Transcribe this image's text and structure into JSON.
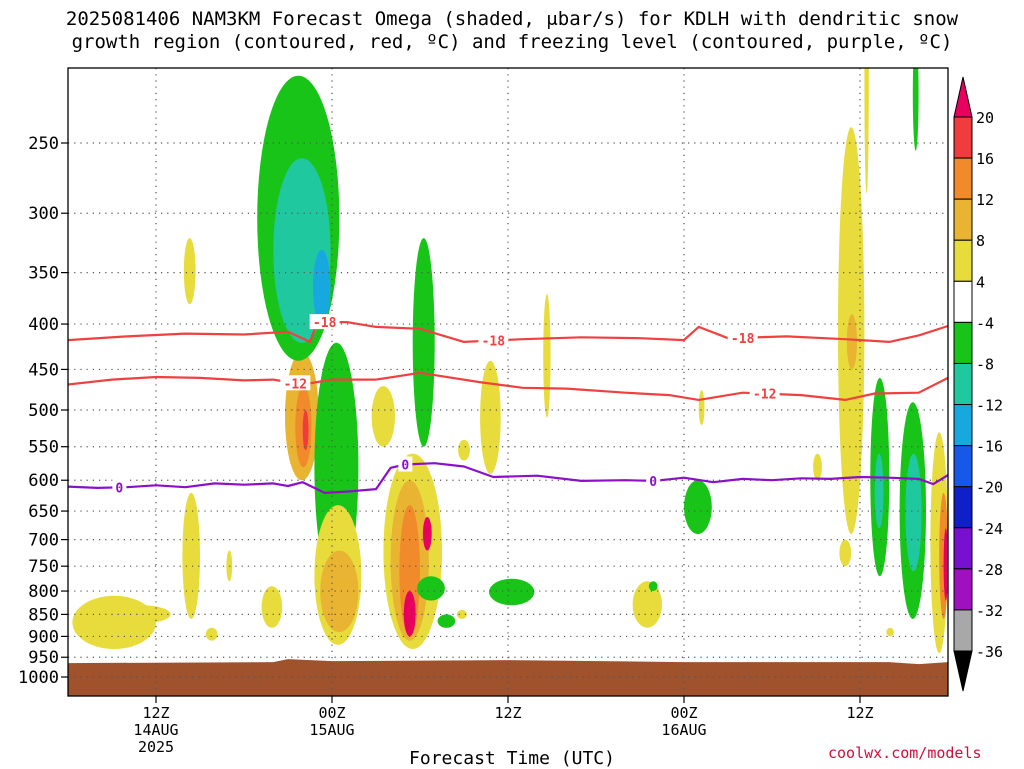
{
  "title_line1": "2025081406 NAM3KM Forecast Omega (shaded, μbar/s) for KDLH with dendritic snow",
  "title_line2": "growth region (contoured, red, ºC) and freezing level (contoured, purple, ºC)",
  "credit": "coolwx.com/models",
  "chart_data": {
    "type": "heatmap",
    "title": "2025081406 NAM3KM Forecast Omega (shaded, μbar/s) for KDLH with dendritic snow growth region (contoured, red, ºC) and freezing level (contoured, purple, ºC)",
    "xlabel": "Forecast Time (UTC)",
    "ylabel": "",
    "y_axis_type": "log-pressure",
    "y_axis_inverted": true,
    "y_ticks": [
      250,
      300,
      350,
      400,
      450,
      500,
      550,
      600,
      650,
      700,
      750,
      800,
      850,
      900,
      950,
      1000
    ],
    "ylim": [
      200,
      1010
    ],
    "x_range_hours": [
      6,
      66
    ],
    "x_ticks": [
      {
        "hour": 12,
        "label": [
          "12Z",
          "14AUG",
          "2025"
        ]
      },
      {
        "hour": 24,
        "label": [
          "00Z",
          "15AUG"
        ]
      },
      {
        "hour": 36,
        "label": [
          "12Z"
        ]
      },
      {
        "hour": 48,
        "label": [
          "00Z",
          "16AUG"
        ]
      },
      {
        "hour": 60,
        "label": [
          "12Z"
        ]
      }
    ],
    "grid": true,
    "colorbar": {
      "labels": [
        "20",
        "16",
        "12",
        "8",
        "4",
        "-4",
        "-8",
        "-12",
        "-16",
        "-20",
        "-24",
        "-28",
        "-32",
        "-36"
      ],
      "levels": [
        20,
        16,
        12,
        8,
        4,
        -4,
        -8,
        -12,
        -16,
        -20,
        -24,
        -28,
        -32,
        -36
      ],
      "colors": [
        "#e8005e",
        "#f03c3c",
        "#f08a2a",
        "#e8b432",
        "#e8dc3c",
        "#ffffff",
        "#18c418",
        "#20c8a0",
        "#18a8e0",
        "#1858e8",
        "#1020c8",
        "#7810d0",
        "#a010c0",
        "#a8a8a8",
        "#000000"
      ],
      "overflow_top_color": "#e8005e",
      "overflow_bottom_color": "#000000"
    },
    "dgz_contours": {
      "color": "#f04040",
      "lines": [
        {
          "label": "-18",
          "level": -18,
          "points": [
            [
              6,
              417
            ],
            [
              10,
              413
            ],
            [
              14,
              410
            ],
            [
              18,
              411
            ],
            [
              21,
              408
            ],
            [
              22.5,
              419
            ],
            [
              23,
              398
            ],
            [
              25,
              398
            ],
            [
              27,
              403
            ],
            [
              30,
              405
            ],
            [
              33,
              419
            ],
            [
              37,
              416
            ],
            [
              41,
              414
            ],
            [
              45,
              415
            ],
            [
              48,
              417
            ],
            [
              49,
              403
            ],
            [
              51,
              415
            ],
            [
              55,
              413
            ],
            [
              59,
              416
            ],
            [
              62,
              419
            ],
            [
              64,
              412
            ],
            [
              66,
              402
            ]
          ],
          "label_positions": [
            23.5,
            35,
            52
          ]
        },
        {
          "label": "-12",
          "level": -12,
          "points": [
            [
              6,
              468
            ],
            [
              9,
              462
            ],
            [
              12,
              459
            ],
            [
              15,
              460
            ],
            [
              18,
              463
            ],
            [
              20,
              462
            ],
            [
              22,
              468
            ],
            [
              24,
              462
            ],
            [
              27,
              462
            ],
            [
              30,
              454
            ],
            [
              34,
              465
            ],
            [
              37,
              472
            ],
            [
              40,
              473
            ],
            [
              44,
              478
            ],
            [
              47,
              481
            ],
            [
              49,
              487
            ],
            [
              52,
              478
            ],
            [
              56,
              481
            ],
            [
              59,
              487
            ],
            [
              61,
              479
            ],
            [
              64,
              478
            ],
            [
              66,
              460
            ]
          ],
          "label_positions": [
            21.5,
            53.5
          ]
        }
      ]
    },
    "freezing_level": {
      "color": "#8c10c8",
      "level": 0,
      "points": [
        [
          6,
          610
        ],
        [
          8,
          612
        ],
        [
          10,
          611
        ],
        [
          12,
          608
        ],
        [
          14,
          611
        ],
        [
          16,
          605
        ],
        [
          18,
          607
        ],
        [
          20,
          605
        ],
        [
          21,
          609
        ],
        [
          22,
          603
        ],
        [
          23.5,
          620
        ],
        [
          25,
          618
        ],
        [
          27,
          614
        ],
        [
          28,
          581
        ],
        [
          29,
          576
        ],
        [
          31,
          574
        ],
        [
          33,
          579
        ],
        [
          35,
          595
        ],
        [
          38,
          593
        ],
        [
          41,
          601
        ],
        [
          44,
          600
        ],
        [
          46,
          601
        ],
        [
          48,
          596
        ],
        [
          50,
          603
        ],
        [
          52,
          598
        ],
        [
          54,
          600
        ],
        [
          56,
          597
        ],
        [
          58,
          598
        ],
        [
          60,
          595
        ],
        [
          62,
          596
        ],
        [
          64,
          598
        ],
        [
          65,
          606
        ],
        [
          66,
          592
        ]
      ],
      "label_positions": [
        9.5,
        29,
        45.9
      ]
    },
    "omega_regions": [
      {
        "value": 4,
        "hour_range": [
          6.3,
          12
        ],
        "p_range": [
          810,
          930
        ]
      },
      {
        "value": 4,
        "hour_range": [
          9,
          13
        ],
        "p_range": [
          830,
          870
        ]
      },
      {
        "value": 4,
        "hour_range": [
          13.9,
          14.7
        ],
        "p_range": [
          320,
          380
        ]
      },
      {
        "value": 4,
        "hour_range": [
          13.8,
          15.0
        ],
        "p_range": [
          620,
          860
        ]
      },
      {
        "value": 4,
        "hour_range": [
          15.4,
          16.2
        ],
        "p_range": [
          880,
          910
        ]
      },
      {
        "value": 4,
        "hour_range": [
          16.8,
          17.2
        ],
        "p_range": [
          720,
          780
        ]
      },
      {
        "value": 4,
        "hour_range": [
          19.2,
          20.6
        ],
        "p_range": [
          790,
          880
        ]
      },
      {
        "value": 8,
        "hour_range": [
          20.8,
          23.1
        ],
        "p_range": [
          430,
          600
        ]
      },
      {
        "value": 12,
        "hour_range": [
          21.5,
          22.6
        ],
        "p_range": [
          470,
          580
        ]
      },
      {
        "value": 16,
        "hour_range": [
          22.0,
          22.4
        ],
        "p_range": [
          500,
          555
        ]
      },
      {
        "value": -8,
        "hour_range": [
          18.9,
          24.5
        ],
        "p_range": [
          210,
          440
        ]
      },
      {
        "value": -12,
        "hour_range": [
          20.0,
          23.9
        ],
        "p_range": [
          260,
          420
        ]
      },
      {
        "value": -16,
        "hour_range": [
          22.7,
          23.9
        ],
        "p_range": [
          330,
          400
        ]
      },
      {
        "value": -8,
        "hour_range": [
          22.8,
          25.8
        ],
        "p_range": [
          420,
          800
        ]
      },
      {
        "value": -12,
        "hour_range": [
          23.6,
          25.4
        ],
        "p_range": [
          640,
          740
        ]
      },
      {
        "value": 4,
        "hour_range": [
          22.8,
          26.0
        ],
        "p_range": [
          640,
          920
        ]
      },
      {
        "value": 8,
        "hour_range": [
          23.2,
          25.8
        ],
        "p_range": [
          720,
          890
        ]
      },
      {
        "value": 4,
        "hour_range": [
          26.7,
          28.3
        ],
        "p_range": [
          470,
          550
        ]
      },
      {
        "value": 4,
        "hour_range": [
          27.5,
          31.5
        ],
        "p_range": [
          560,
          930
        ]
      },
      {
        "value": 8,
        "hour_range": [
          28.0,
          30.6
        ],
        "p_range": [
          600,
          910
        ]
      },
      {
        "value": 12,
        "hour_range": [
          28.6,
          30.0
        ],
        "p_range": [
          640,
          900
        ]
      },
      {
        "value": 20,
        "hour_range": [
          28.9,
          29.7
        ],
        "p_range": [
          800,
          900
        ]
      },
      {
        "value": 20,
        "hour_range": [
          30.2,
          30.8
        ],
        "p_range": [
          660,
          720
        ]
      },
      {
        "value": -8,
        "hour_range": [
          29.5,
          31.0
        ],
        "p_range": [
          320,
          550
        ]
      },
      {
        "value": -8,
        "hour_range": [
          29.8,
          31.7
        ],
        "p_range": [
          770,
          820
        ]
      },
      {
        "value": -8,
        "hour_range": [
          31.2,
          32.4
        ],
        "p_range": [
          850,
          880
        ]
      },
      {
        "value": 4,
        "hour_range": [
          32.5,
          33.2
        ],
        "p_range": [
          840,
          860
        ]
      },
      {
        "value": 4,
        "hour_range": [
          32.6,
          33.4
        ],
        "p_range": [
          540,
          570
        ]
      },
      {
        "value": 4,
        "hour_range": [
          34.1,
          35.5
        ],
        "p_range": [
          440,
          590
        ]
      },
      {
        "value": -8,
        "hour_range": [
          34.7,
          37.8
        ],
        "p_range": [
          775,
          830
        ]
      },
      {
        "value": 4,
        "hour_range": [
          38.4,
          38.9
        ],
        "p_range": [
          370,
          510
        ]
      },
      {
        "value": 4,
        "hour_range": [
          44.5,
          46.5
        ],
        "p_range": [
          780,
          880
        ]
      },
      {
        "value": -8,
        "hour_range": [
          45.6,
          46.2
        ],
        "p_range": [
          780,
          800
        ]
      },
      {
        "value": -8,
        "hour_range": [
          48.0,
          49.9
        ],
        "p_range": [
          600,
          690
        ]
      },
      {
        "value": 4,
        "hour_range": [
          49.0,
          49.4
        ],
        "p_range": [
          475,
          520
        ]
      },
      {
        "value": 4,
        "hour_range": [
          56.8,
          57.4
        ],
        "p_range": [
          560,
          600
        ]
      },
      {
        "value": 4,
        "hour_range": [
          58.6,
          59.4
        ],
        "p_range": [
          700,
          750
        ]
      },
      {
        "value": 4,
        "hour_range": [
          58.5,
          60.3
        ],
        "p_range": [
          240,
          690
        ]
      },
      {
        "value": 8,
        "hour_range": [
          59.1,
          59.8
        ],
        "p_range": [
          390,
          450
        ]
      },
      {
        "value": 4,
        "hour_range": [
          60.3,
          60.6
        ],
        "p_range": [
          160,
          285
        ]
      },
      {
        "value": -8,
        "hour_range": [
          60.7,
          62.0
        ],
        "p_range": [
          460,
          770
        ]
      },
      {
        "value": -12,
        "hour_range": [
          61.0,
          61.6
        ],
        "p_range": [
          560,
          680
        ]
      },
      {
        "value": 4,
        "hour_range": [
          61.8,
          62.3
        ],
        "p_range": [
          880,
          900
        ]
      },
      {
        "value": -8,
        "hour_range": [
          62.7,
          64.5
        ],
        "p_range": [
          490,
          860
        ]
      },
      {
        "value": -12,
        "hour_range": [
          63.1,
          64.2
        ],
        "p_range": [
          560,
          760
        ]
      },
      {
        "value": -8,
        "hour_range": [
          63.6,
          64.0
        ],
        "p_range": [
          190,
          255
        ]
      },
      {
        "value": 4,
        "hour_range": [
          64.8,
          66.0
        ],
        "p_range": [
          530,
          940
        ]
      },
      {
        "value": 12,
        "hour_range": [
          65.4,
          66.0
        ],
        "p_range": [
          620,
          860
        ]
      },
      {
        "value": 20,
        "hour_range": [
          65.7,
          66.0
        ],
        "p_range": [
          680,
          820
        ]
      }
    ],
    "terrain": {
      "color": "#a0522d",
      "p_top": 962
    }
  }
}
